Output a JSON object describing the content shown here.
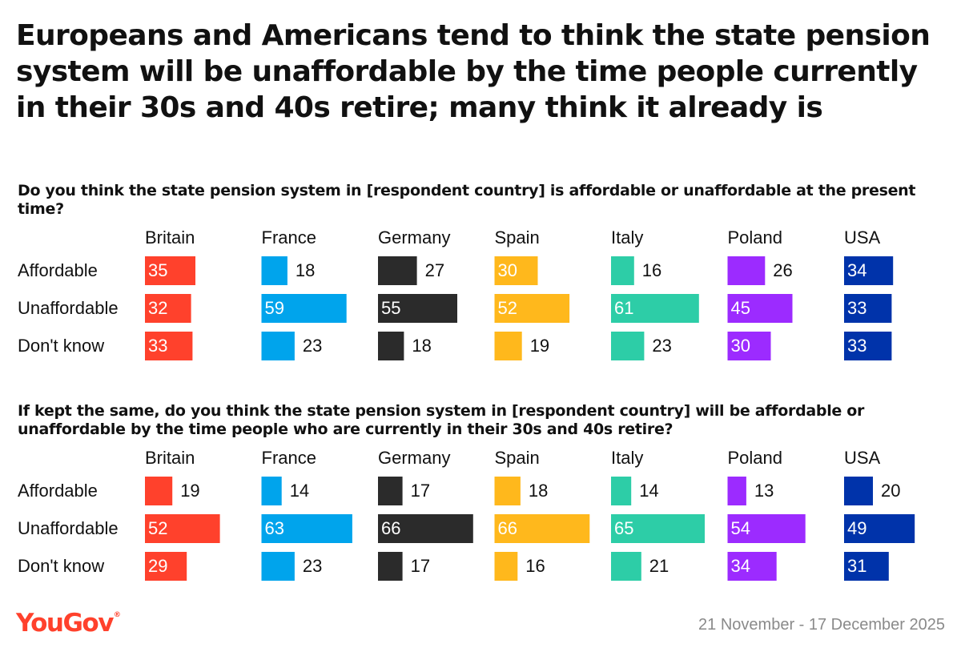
{
  "title": "Europeans and Americans tend to think the state pension system will be unaffordable by the time people currently in their 30s and 40s retire; many think it already is",
  "brand": {
    "logo_text": "YouGov",
    "trademark": "®"
  },
  "date_range": "21 November - 17 December 2025",
  "colors": {
    "Britain": "#ff412c",
    "France": "#00a4ec",
    "Germany": "#2b2b2b",
    "Spain": "#ffb81c",
    "Italy": "#2dcda7",
    "Poland": "#9c2bff",
    "USA": "#0033aa"
  },
  "chart_data": [
    {
      "type": "bar",
      "title": "Do you think the state pension system in [respondent country] is affordable or unaffordable at the present time?",
      "categories": [
        "Affordable",
        "Unaffordable",
        "Don't know"
      ],
      "series": [
        {
          "name": "Britain",
          "values": [
            35,
            32,
            33
          ]
        },
        {
          "name": "France",
          "values": [
            18,
            59,
            23
          ]
        },
        {
          "name": "Germany",
          "values": [
            27,
            55,
            18
          ]
        },
        {
          "name": "Spain",
          "values": [
            30,
            52,
            19
          ]
        },
        {
          "name": "Italy",
          "values": [
            16,
            61,
            23
          ]
        },
        {
          "name": "Poland",
          "values": [
            26,
            45,
            30
          ]
        },
        {
          "name": "USA",
          "values": [
            34,
            33,
            33
          ]
        }
      ]
    },
    {
      "type": "bar",
      "title": "If kept the same, do you think the state pension system in [respondent country] will be affordable or unaffordable by the time people who are currently in their 30s and 40s retire?",
      "categories": [
        "Affordable",
        "Unaffordable",
        "Don't know"
      ],
      "series": [
        {
          "name": "Britain",
          "values": [
            19,
            52,
            29
          ]
        },
        {
          "name": "France",
          "values": [
            14,
            63,
            23
          ]
        },
        {
          "name": "Germany",
          "values": [
            17,
            66,
            17
          ]
        },
        {
          "name": "Spain",
          "values": [
            18,
            66,
            16
          ]
        },
        {
          "name": "Italy",
          "values": [
            14,
            65,
            21
          ]
        },
        {
          "name": "Poland",
          "values": [
            13,
            54,
            34
          ]
        },
        {
          "name": "USA",
          "values": [
            20,
            49,
            31
          ]
        }
      ]
    }
  ]
}
